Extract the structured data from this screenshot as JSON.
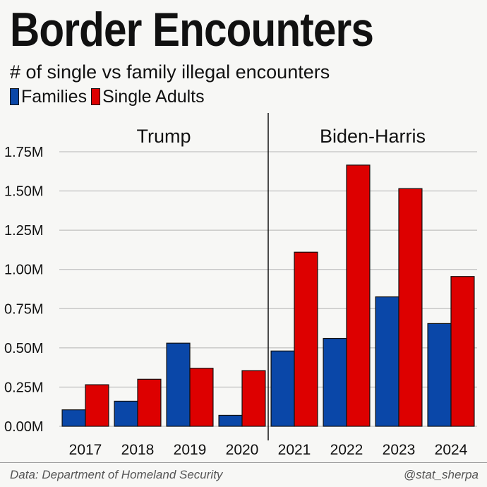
{
  "chart_data": {
    "type": "bar",
    "title": "Border Encounters",
    "subtitle": "# of single vs family illegal encounters",
    "categories": [
      "2017",
      "2018",
      "2019",
      "2020",
      "2021",
      "2022",
      "2023",
      "2024"
    ],
    "series": [
      {
        "name": "Families",
        "color": "#0a47a8",
        "values": [
          0.105,
          0.16,
          0.53,
          0.07,
          0.48,
          0.56,
          0.825,
          0.655
        ]
      },
      {
        "name": "Single Adults",
        "color": "#dd0000",
        "values": [
          0.265,
          0.3,
          0.37,
          0.355,
          1.11,
          1.665,
          1.515,
          0.955
        ]
      }
    ],
    "yticks": [
      {
        "value": 0,
        "label": "0.00M"
      },
      {
        "value": 0.25,
        "label": "0.25M"
      },
      {
        "value": 0.5,
        "label": "0.50M"
      },
      {
        "value": 0.75,
        "label": "0.75M"
      },
      {
        "value": 1.0,
        "label": "1.00M"
      },
      {
        "value": 1.25,
        "label": "1.25M"
      },
      {
        "value": 1.5,
        "label": "1.50M"
      },
      {
        "value": 1.75,
        "label": "1.75M"
      }
    ],
    "ylim": [
      0,
      1.88
    ],
    "grid": true,
    "legend_position": "top-left",
    "periods": [
      {
        "label": "Trump",
        "categories": [
          "2017",
          "2018",
          "2019",
          "2020"
        ]
      },
      {
        "label": "Biden-Harris",
        "categories": [
          "2021",
          "2022",
          "2023",
          "2024"
        ]
      }
    ],
    "divider_between": [
      "2020",
      "2021"
    ]
  },
  "legend": {
    "families": "Families",
    "single_adults": "Single Adults"
  },
  "footer": {
    "source": "Data: Department of Homeland Security",
    "handle": "@stat_sherpa"
  }
}
